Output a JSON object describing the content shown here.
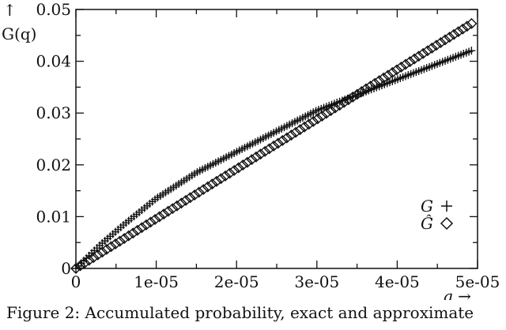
{
  "caption": "Figure 2: Accumulated probability, exact and approximate",
  "chart_data": {
    "type": "scatter",
    "ylabel": "↑ G(q)",
    "xlabel": "q →",
    "xlim": [
      0,
      5e-05
    ],
    "ylim": [
      0,
      0.05
    ],
    "x_ticks": [
      "0",
      "1e-05",
      "2e-05",
      "3e-05",
      "4e-05",
      "5e-05"
    ],
    "y_ticks": [
      "0",
      "0.01",
      "0.02",
      "0.03",
      "0.04",
      "0.05"
    ],
    "grid": false,
    "legend_position": "right",
    "series": [
      {
        "name": "G",
        "marker": "+",
        "color": "#111111",
        "x": [
          0,
          3e-06,
          6e-06,
          1e-05,
          1.5e-05,
          2e-05,
          2.5e-05,
          3e-05,
          3.5e-05,
          4e-05,
          4.5e-05,
          5e-05
        ],
        "y": [
          0,
          0.0045,
          0.0085,
          0.0135,
          0.0185,
          0.0225,
          0.0265,
          0.0305,
          0.0335,
          0.0365,
          0.0395,
          0.0425
        ]
      },
      {
        "name": "Ĝ",
        "marker": "diamond",
        "color": "#111111",
        "x": [
          0,
          5e-06,
          1e-05,
          1.5e-05,
          2e-05,
          2.5e-05,
          3e-05,
          3.5e-05,
          4e-05,
          4.5e-05,
          5e-05
        ],
        "y": [
          0,
          0.0048,
          0.0096,
          0.0144,
          0.0192,
          0.024,
          0.0288,
          0.0336,
          0.0384,
          0.0432,
          0.048
        ]
      }
    ]
  }
}
